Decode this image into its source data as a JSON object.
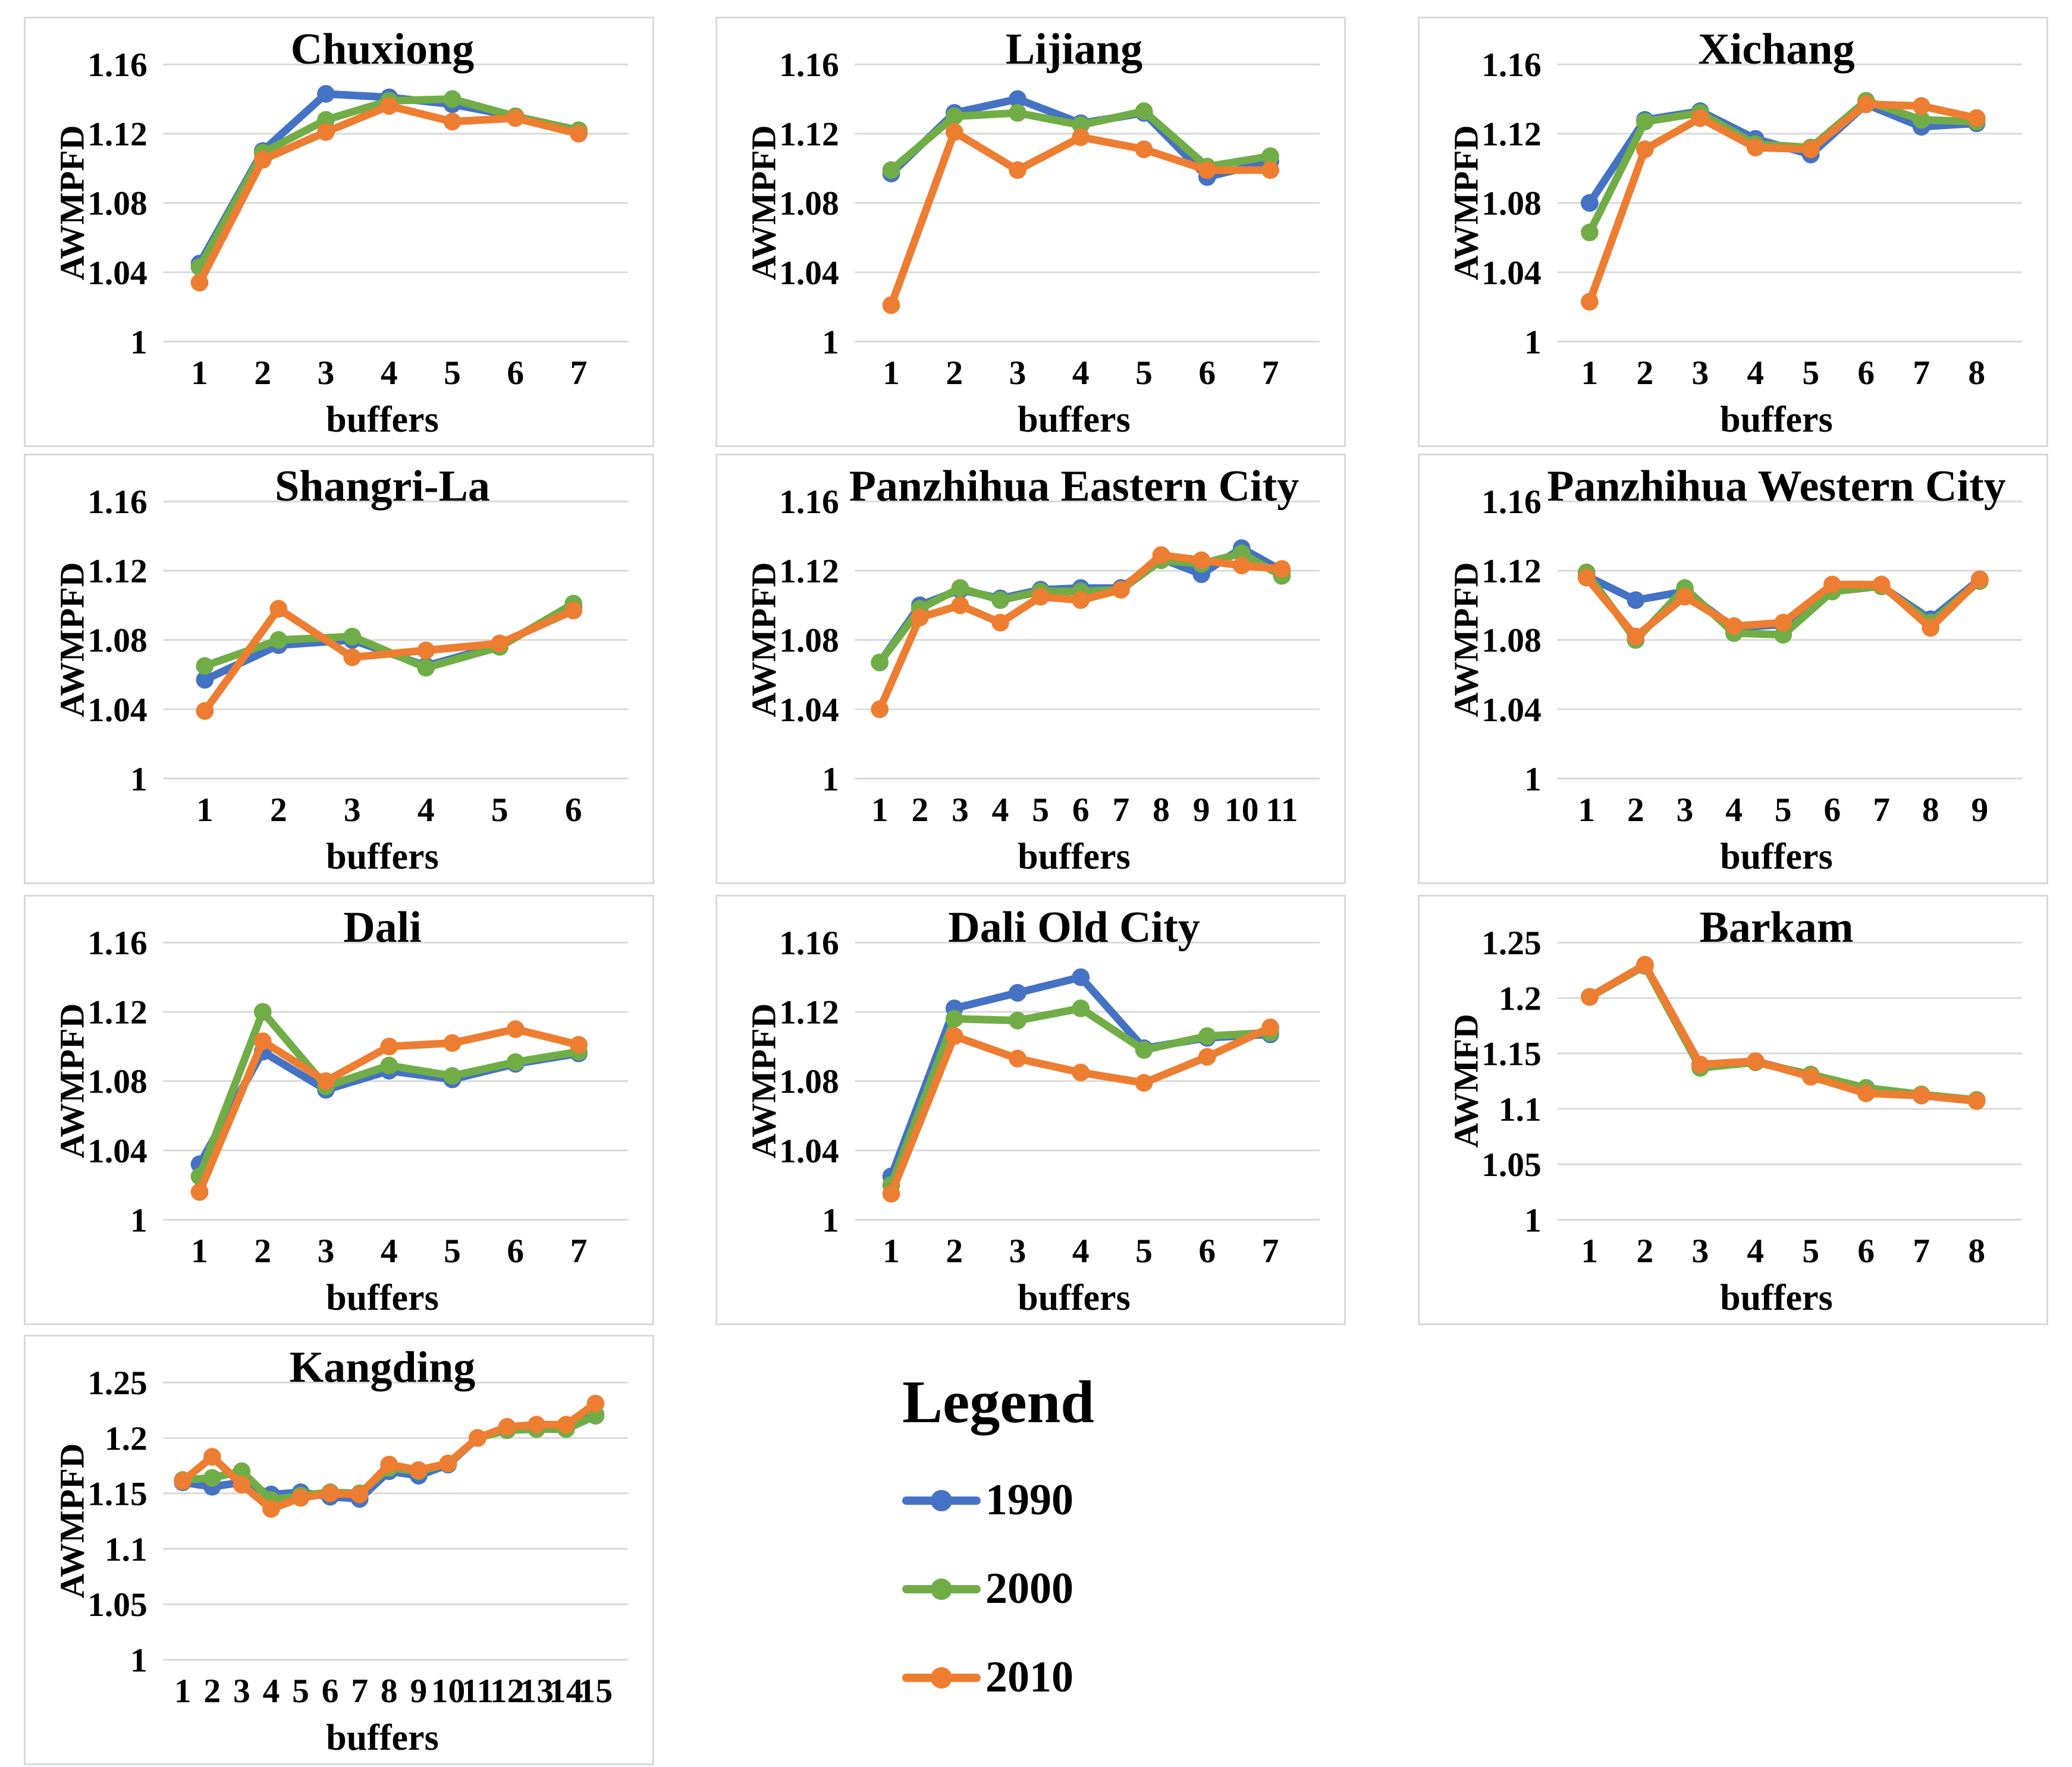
{
  "legend": {
    "title": "Legend",
    "position": "bottom-center",
    "entries": [
      {
        "label": "1990",
        "color": "#4472C4"
      },
      {
        "label": "2000",
        "color": "#70AD47"
      },
      {
        "label": "2010",
        "color": "#ED7D31"
      }
    ]
  },
  "colors": {
    "series_1990": "#4472C4",
    "series_2000": "#70AD47",
    "series_2010": "#ED7D31",
    "gridline": "#d9d9d9",
    "panel_border": "#d9d9d9",
    "text": "#000000"
  },
  "chart_data": [
    {
      "type": "line",
      "title": "Chuxiong",
      "xlabel": "buffers",
      "ylabel": "AWMPFD",
      "categories": [
        1,
        2,
        3,
        4,
        5,
        6,
        7
      ],
      "ylim": [
        1,
        1.16
      ],
      "yticks": [
        1,
        1.04,
        1.08,
        1.12,
        1.16
      ],
      "ytick_labels": [
        "1",
        "1.04",
        "1.08",
        "1.12",
        "1.16"
      ],
      "grid": true,
      "series": [
        {
          "name": "1990",
          "color": "#4472C4",
          "values": [
            1.045,
            1.11,
            1.143,
            1.141,
            1.137,
            1.13,
            1.121
          ]
        },
        {
          "name": "2000",
          "color": "#70AD47",
          "values": [
            1.043,
            1.109,
            1.128,
            1.139,
            1.14,
            1.13,
            1.122
          ]
        },
        {
          "name": "2010",
          "color": "#ED7D31",
          "values": [
            1.034,
            1.105,
            1.121,
            1.136,
            1.127,
            1.129,
            1.12
          ]
        }
      ]
    },
    {
      "type": "line",
      "title": "Lijiang",
      "xlabel": "buffers",
      "ylabel": "AWMPFD",
      "categories": [
        1,
        2,
        3,
        4,
        5,
        6,
        7
      ],
      "ylim": [
        1,
        1.16
      ],
      "yticks": [
        1,
        1.04,
        1.08,
        1.12,
        1.16
      ],
      "ytick_labels": [
        "1",
        "1.04",
        "1.08",
        "1.12",
        "1.16"
      ],
      "grid": true,
      "series": [
        {
          "name": "1990",
          "color": "#4472C4",
          "values": [
            1.097,
            1.132,
            1.14,
            1.126,
            1.132,
            1.095,
            1.104
          ]
        },
        {
          "name": "2000",
          "color": "#70AD47",
          "values": [
            1.099,
            1.13,
            1.132,
            1.125,
            1.133,
            1.101,
            1.107
          ]
        },
        {
          "name": "2010",
          "color": "#ED7D31",
          "values": [
            1.021,
            1.121,
            1.099,
            1.118,
            1.111,
            1.099,
            1.099
          ]
        }
      ]
    },
    {
      "type": "line",
      "title": "Xichang",
      "xlabel": "buffers",
      "ylabel": "AWMPFD",
      "categories": [
        1,
        2,
        3,
        4,
        5,
        6,
        7,
        8
      ],
      "ylim": [
        1,
        1.16
      ],
      "yticks": [
        1,
        1.04,
        1.08,
        1.12,
        1.16
      ],
      "ytick_labels": [
        "1",
        "1.04",
        "1.08",
        "1.12",
        "1.16"
      ],
      "grid": true,
      "series": [
        {
          "name": "1990",
          "color": "#4472C4",
          "values": [
            1.08,
            1.128,
            1.133,
            1.117,
            1.108,
            1.137,
            1.124,
            1.126
          ]
        },
        {
          "name": "2000",
          "color": "#70AD47",
          "values": [
            1.063,
            1.127,
            1.132,
            1.114,
            1.112,
            1.139,
            1.128,
            1.127
          ]
        },
        {
          "name": "2010",
          "color": "#ED7D31",
          "values": [
            1.023,
            1.111,
            1.129,
            1.112,
            1.111,
            1.137,
            1.136,
            1.129
          ]
        }
      ]
    },
    {
      "type": "line",
      "title": "Shangri-La",
      "xlabel": "buffers",
      "ylabel": "AWMPFD",
      "categories": [
        1,
        2,
        3,
        4,
        5,
        6
      ],
      "ylim": [
        1,
        1.16
      ],
      "yticks": [
        1,
        1.04,
        1.08,
        1.12,
        1.16
      ],
      "ytick_labels": [
        "1",
        "1.04",
        "1.08",
        "1.12",
        "1.16"
      ],
      "grid": true,
      "series": [
        {
          "name": "1990",
          "color": "#4472C4",
          "values": [
            1.057,
            1.077,
            1.08,
            1.065,
            1.077,
            1.099
          ]
        },
        {
          "name": "2000",
          "color": "#70AD47",
          "values": [
            1.065,
            1.08,
            1.082,
            1.064,
            1.076,
            1.101
          ]
        },
        {
          "name": "2010",
          "color": "#ED7D31",
          "values": [
            1.039,
            1.098,
            1.07,
            1.074,
            1.078,
            1.097
          ]
        }
      ]
    },
    {
      "type": "line",
      "title": "Panzhihua Eastern City",
      "xlabel": "buffers",
      "ylabel": "AWMPFD",
      "categories": [
        1,
        2,
        3,
        4,
        5,
        6,
        7,
        8,
        9,
        10,
        11
      ],
      "ylim": [
        1,
        1.16
      ],
      "yticks": [
        1,
        1.04,
        1.08,
        1.12,
        1.16
      ],
      "ytick_labels": [
        "1",
        "1.04",
        "1.08",
        "1.12",
        "1.16"
      ],
      "grid": true,
      "series": [
        {
          "name": "1990",
          "color": "#4472C4",
          "values": [
            1.067,
            1.1,
            1.109,
            1.104,
            1.109,
            1.11,
            1.11,
            1.127,
            1.118,
            1.133,
            1.12
          ]
        },
        {
          "name": "2000",
          "color": "#70AD47",
          "values": [
            1.067,
            1.098,
            1.11,
            1.103,
            1.108,
            1.108,
            1.109,
            1.126,
            1.124,
            1.13,
            1.117
          ]
        },
        {
          "name": "2010",
          "color": "#ED7D31",
          "values": [
            1.04,
            1.093,
            1.1,
            1.09,
            1.105,
            1.103,
            1.109,
            1.129,
            1.126,
            1.123,
            1.121
          ]
        }
      ]
    },
    {
      "type": "line",
      "title": "Panzhihua Western City",
      "xlabel": "buffers",
      "ylabel": "AWMPFD",
      "categories": [
        1,
        2,
        3,
        4,
        5,
        6,
        7,
        8,
        9
      ],
      "ylim": [
        1,
        1.16
      ],
      "yticks": [
        1,
        1.04,
        1.08,
        1.12,
        1.16
      ],
      "ytick_labels": [
        "1",
        "1.04",
        "1.08",
        "1.12",
        "1.16"
      ],
      "grid": true,
      "series": [
        {
          "name": "1990",
          "color": "#4472C4",
          "values": [
            1.117,
            1.103,
            1.108,
            1.087,
            1.089,
            1.11,
            1.111,
            1.092,
            1.115
          ]
        },
        {
          "name": "2000",
          "color": "#70AD47",
          "values": [
            1.119,
            1.08,
            1.11,
            1.084,
            1.083,
            1.108,
            1.111,
            1.09,
            1.114
          ]
        },
        {
          "name": "2010",
          "color": "#ED7D31",
          "values": [
            1.116,
            1.082,
            1.105,
            1.088,
            1.09,
            1.112,
            1.112,
            1.087,
            1.115
          ]
        }
      ]
    },
    {
      "type": "line",
      "title": "Dali",
      "xlabel": "buffers",
      "ylabel": "AWMPFD",
      "categories": [
        1,
        2,
        3,
        4,
        5,
        6,
        7
      ],
      "ylim": [
        1,
        1.16
      ],
      "yticks": [
        1,
        1.04,
        1.08,
        1.12,
        1.16
      ],
      "ytick_labels": [
        "1",
        "1.04",
        "1.08",
        "1.12",
        "1.16"
      ],
      "grid": true,
      "series": [
        {
          "name": "1990",
          "color": "#4472C4",
          "values": [
            1.032,
            1.097,
            1.075,
            1.086,
            1.081,
            1.09,
            1.096
          ]
        },
        {
          "name": "2000",
          "color": "#70AD47",
          "values": [
            1.025,
            1.12,
            1.077,
            1.089,
            1.083,
            1.091,
            1.097
          ]
        },
        {
          "name": "2010",
          "color": "#ED7D31",
          "values": [
            1.016,
            1.103,
            1.08,
            1.1,
            1.102,
            1.11,
            1.101
          ]
        }
      ]
    },
    {
      "type": "line",
      "title": "Dali Old City",
      "xlabel": "buffers",
      "ylabel": "AWMPFD",
      "categories": [
        1,
        2,
        3,
        4,
        5,
        6,
        7
      ],
      "ylim": [
        1,
        1.16
      ],
      "yticks": [
        1,
        1.04,
        1.08,
        1.12,
        1.16
      ],
      "ytick_labels": [
        "1",
        "1.04",
        "1.08",
        "1.12",
        "1.16"
      ],
      "grid": true,
      "series": [
        {
          "name": "1990",
          "color": "#4472C4",
          "values": [
            1.025,
            1.122,
            1.131,
            1.14,
            1.099,
            1.105,
            1.107
          ]
        },
        {
          "name": "2000",
          "color": "#70AD47",
          "values": [
            1.02,
            1.116,
            1.115,
            1.122,
            1.098,
            1.106,
            1.108
          ]
        },
        {
          "name": "2010",
          "color": "#ED7D31",
          "values": [
            1.015,
            1.106,
            1.093,
            1.085,
            1.079,
            1.094,
            1.111
          ]
        }
      ]
    },
    {
      "type": "line",
      "title": "Barkam",
      "xlabel": "buffers",
      "ylabel": "AWMFD",
      "categories": [
        1,
        2,
        3,
        4,
        5,
        6,
        7,
        8
      ],
      "ylim": [
        1,
        1.25
      ],
      "yticks": [
        1,
        1.05,
        1.1,
        1.15,
        1.2,
        1.25
      ],
      "ytick_labels": [
        "1",
        "1.05",
        "1.1",
        "1.15",
        "1.2",
        "1.25"
      ],
      "grid": true,
      "series": [
        {
          "name": "1990",
          "color": "#4472C4",
          "values": [
            1.201,
            1.229,
            1.139,
            1.143,
            1.13,
            1.117,
            1.112,
            1.108
          ]
        },
        {
          "name": "2000",
          "color": "#70AD47",
          "values": [
            1.201,
            1.229,
            1.137,
            1.142,
            1.131,
            1.119,
            1.113,
            1.108
          ]
        },
        {
          "name": "2010",
          "color": "#ED7D31",
          "values": [
            1.201,
            1.23,
            1.14,
            1.143,
            1.129,
            1.114,
            1.112,
            1.107
          ]
        }
      ]
    },
    {
      "type": "line",
      "title": "Kangding",
      "xlabel": "buffers",
      "ylabel": "AWMPFD",
      "categories": [
        1,
        2,
        3,
        4,
        5,
        6,
        7,
        8,
        9,
        10,
        11,
        12,
        13,
        14,
        15
      ],
      "ylim": [
        1,
        1.25
      ],
      "yticks": [
        1,
        1.05,
        1.1,
        1.15,
        1.2,
        1.25
      ],
      "ytick_labels": [
        "1",
        "1.05",
        "1.1",
        "1.15",
        "1.2",
        "1.25"
      ],
      "grid": true,
      "series": [
        {
          "name": "1990",
          "color": "#4472C4",
          "values": [
            1.16,
            1.156,
            1.16,
            1.149,
            1.151,
            1.147,
            1.145,
            1.17,
            1.166,
            1.176,
            1.2,
            1.208,
            1.21,
            1.209,
            1.221
          ]
        },
        {
          "name": "2000",
          "color": "#70AD47",
          "values": [
            1.162,
            1.164,
            1.17,
            1.144,
            1.148,
            1.151,
            1.15,
            1.173,
            1.17,
            1.177,
            1.2,
            1.207,
            1.208,
            1.208,
            1.22
          ]
        },
        {
          "name": "2010",
          "color": "#ED7D31",
          "values": [
            1.161,
            1.183,
            1.158,
            1.136,
            1.146,
            1.15,
            1.149,
            1.176,
            1.171,
            1.177,
            1.2,
            1.21,
            1.212,
            1.212,
            1.231
          ]
        }
      ]
    }
  ]
}
